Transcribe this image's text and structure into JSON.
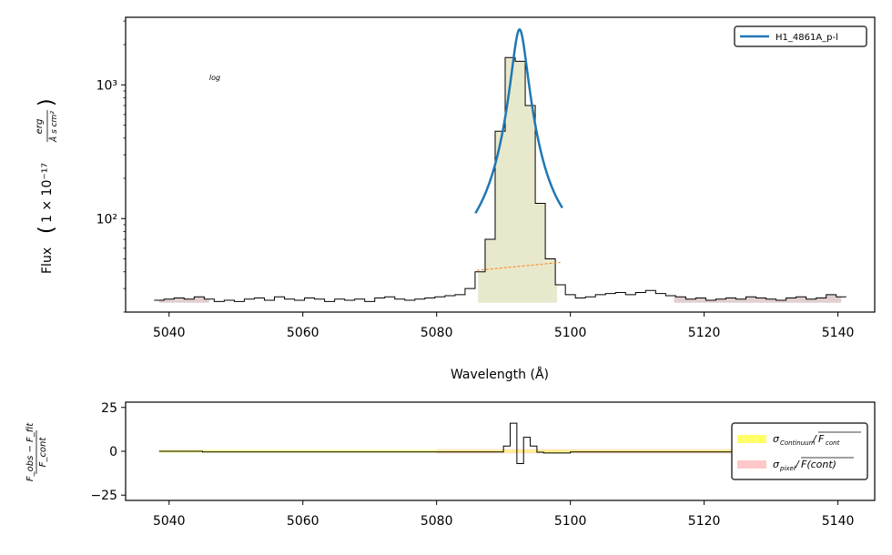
{
  "chart_data": [
    {
      "type": "line",
      "panel": "main",
      "xlabel": "Wavelength (Å)",
      "ylabel_text": "Flux",
      "ylabel_math": "1 × 10⁻¹⁷",
      "ylabel_unit_num": "erg",
      "ylabel_unit_den": "Å s cm²",
      "yscale": "log",
      "scale_note": "log",
      "xlim": [
        5033.5,
        5145.5
      ],
      "ylim": [
        20,
        3200
      ],
      "xticks": [
        5040,
        5060,
        5080,
        5100,
        5120,
        5140
      ],
      "xtick_labels": [
        "5040",
        "5060",
        "5080",
        "5100",
        "5120",
        "5140"
      ],
      "yticks": [
        100,
        1000
      ],
      "ytick_labels": [
        "10²",
        "10³"
      ],
      "legend_position": "top-right",
      "legend": [
        "H1_4861A_p-l"
      ],
      "spectrum_x": [
        5038.5,
        5040,
        5041.5,
        5043,
        5044.5,
        5046,
        5047.5,
        5049,
        5050.5,
        5052,
        5053.5,
        5055,
        5056.5,
        5058,
        5059.5,
        5061,
        5062.5,
        5064,
        5065.5,
        5067,
        5068.5,
        5070,
        5071.5,
        5073,
        5074.5,
        5076,
        5077.5,
        5079,
        5080.5,
        5082,
        5083.5,
        5085,
        5086.5,
        5088,
        5089.5,
        5091,
        5092.5,
        5094,
        5095.5,
        5097,
        5098.5,
        5100,
        5101.5,
        5103,
        5104.5,
        5106,
        5107.5,
        5109,
        5110.5,
        5112,
        5113.5,
        5115,
        5116.5,
        5118,
        5119.5,
        5121,
        5122.5,
        5124,
        5125.5,
        5127,
        5128.5,
        5130,
        5131.5,
        5133,
        5134.5,
        5136,
        5137.5,
        5139,
        5140.5
      ],
      "spectrum_flux": [
        24.5,
        25,
        25.5,
        25,
        26,
        25,
        24,
        24.5,
        24,
        25,
        25.5,
        24.5,
        26,
        25,
        24.5,
        25.5,
        25,
        24,
        25,
        24.5,
        25,
        24,
        25.5,
        26,
        25,
        24.5,
        25,
        25.5,
        26,
        26.5,
        27,
        30,
        40,
        70,
        450,
        1600,
        1500,
        700,
        130,
        50,
        32,
        27,
        25.5,
        26,
        27,
        27.5,
        28,
        27,
        28,
        29,
        27.5,
        26.5,
        26,
        25,
        25.5,
        24.5,
        25,
        25.5,
        25,
        26,
        25.5,
        25,
        24.5,
        25.5,
        26,
        25,
        25.5,
        27,
        26
      ],
      "fill_line_range": [
        5086.2,
        5098
      ],
      "fill_line_floor": 23.5,
      "fill_continuum_ranges": [
        [
          5038.5,
          5046
        ],
        [
          5115.5,
          5140.5
        ]
      ],
      "continuum_fit": {
        "x": [
          5086,
          5098.5
        ],
        "y": [
          41,
          47
        ]
      },
      "profile_fit": {
        "name": "H1_4861A_p-l",
        "center": 5092.4,
        "peak": 2550,
        "hwhm": 1.1,
        "x_range": [
          5085.8,
          5098.8
        ]
      },
      "colors": {
        "spectrum": "#000000",
        "profile": "#1f77b4",
        "continuum": "#ff7f0e",
        "line_fill": "#e8e8cc",
        "cont_fill": "#e2cfcf"
      }
    },
    {
      "type": "line",
      "panel": "residual",
      "ylabel_num": "F_obs − F_fit",
      "ylabel_den": "F_cont",
      "xlim": [
        5033.5,
        5145.5
      ],
      "ylim": [
        -28,
        28
      ],
      "xticks": [
        5040,
        5060,
        5080,
        5100,
        5120,
        5140
      ],
      "xtick_labels": [
        "5040",
        "5060",
        "5080",
        "5100",
        "5120",
        "5140"
      ],
      "yticks": [
        -25,
        0,
        25
      ],
      "ytick_labels": [
        "−25",
        "0",
        "25"
      ],
      "legend_position": "right",
      "legend": [
        "σ_Continuum / F_cont",
        "σ_pixel / F(cont)"
      ],
      "legend_math": [
        {
          "sym": "σ",
          "sub": "Continuum",
          "over": "F",
          "over_sub": "cont"
        },
        {
          "sym": "σ",
          "sub": "pixel",
          "over": "F(cont)",
          "over_sub": ""
        }
      ],
      "residual_x": [
        5038.5,
        5045,
        5080,
        5090,
        5091,
        5092,
        5093,
        5094,
        5095,
        5096,
        5100,
        5141
      ],
      "residual_y": [
        0,
        -0.4,
        -0.4,
        3,
        16,
        -7,
        8,
        3,
        -0.5,
        -1,
        -0.4,
        -0.4
      ],
      "sigma_continuum_band": [
        [
          5038.5,
          5141,
          0.8
        ]
      ],
      "sigma_pixel_band": [
        [
          5080,
          5141,
          1.2
        ]
      ],
      "colors": {
        "residual": "#000000",
        "sigma_continuum": "#ffff66",
        "sigma_pixel": "#ffc8c8"
      }
    }
  ]
}
